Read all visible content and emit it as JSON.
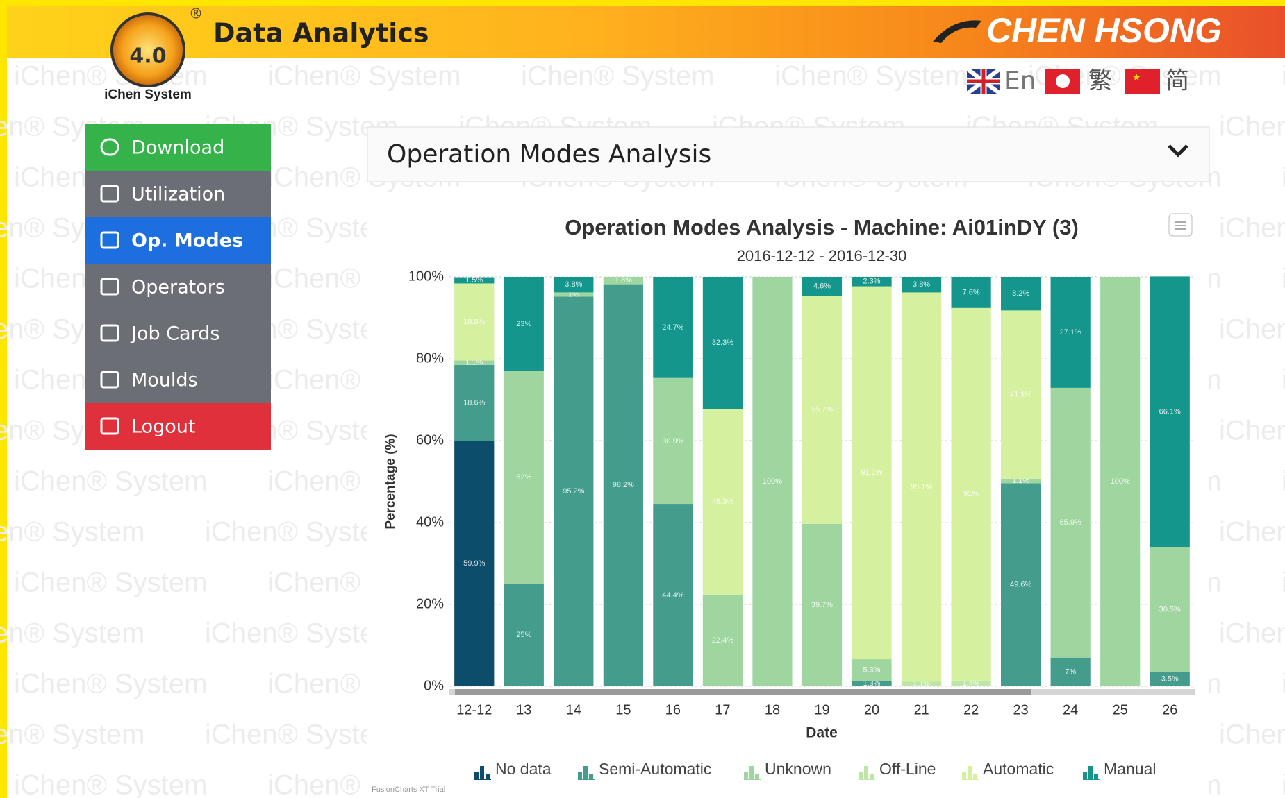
{
  "watermark": "iChen® System",
  "header": {
    "logo_version": "4.0",
    "logo_caption": "iChen System",
    "title": "Data Analytics",
    "company": "CHEN HSONG",
    "languages": [
      "En",
      "繁",
      "简"
    ]
  },
  "nav": [
    "Download",
    "Utilization",
    "Op. Modes",
    "Operators",
    "Job Cards",
    "Moulds",
    "Logout"
  ],
  "dropdown": "Operation Modes Analysis",
  "footer": "FusionCharts XT Trial",
  "chart_data": {
    "type": "stacked_bar",
    "title": "Operation Modes Analysis - Machine: Ai01inDY (3)",
    "subtitle": "2016-12-12 - 2016-12-30",
    "x_label": "Date",
    "y_label": "Percentage (%)",
    "categories": [
      "12-12",
      "13",
      "14",
      "15",
      "16",
      "17",
      "18",
      "19",
      "20",
      "21",
      "22",
      "23",
      "24",
      "25",
      "26"
    ],
    "ylim": [
      0,
      100
    ],
    "yticks": [
      {
        "value": 0,
        "label": "0%"
      },
      {
        "value": 20,
        "label": "20%"
      },
      {
        "value": 40,
        "label": "40%"
      },
      {
        "value": 60,
        "label": "60%"
      },
      {
        "value": 80,
        "label": "80%"
      },
      {
        "value": 100,
        "label": "100%"
      }
    ],
    "grid": true,
    "legend": "bottom",
    "series": [
      {
        "name": "No data",
        "color": "#0b4d6b",
        "values": [
          59.9,
          null,
          null,
          null,
          null,
          null,
          null,
          null,
          null,
          null,
          null,
          null,
          null,
          null,
          null
        ],
        "value_labels": [
          "59.9%",
          null,
          null,
          null,
          null,
          null,
          null,
          null,
          null,
          null,
          null,
          null,
          null,
          null,
          null
        ]
      },
      {
        "name": "Semi-Automatic",
        "color": "#449c8c",
        "values": [
          18.6,
          25,
          95.2,
          98.2,
          44.4,
          null,
          null,
          null,
          1.3,
          null,
          null,
          49.6,
          7,
          null,
          3.5
        ],
        "value_labels": [
          "18.6%",
          "25%",
          "95.2%",
          "98.2%",
          "44.4%",
          null,
          null,
          null,
          "1.3%",
          null,
          null,
          "49.6%",
          "7%",
          null,
          "3.5%"
        ]
      },
      {
        "name": "Unknown",
        "color": "#9fd6a0",
        "values": [
          1.1,
          52,
          1,
          1.8,
          30.9,
          22.4,
          100,
          39.7,
          5.3,
          null,
          null,
          1.1,
          65.9,
          100,
          30.5
        ],
        "value_labels": [
          "1.1%",
          "52%",
          "1%",
          "1.8%",
          "30.9%",
          "22.4%",
          "100%",
          "39.7%",
          "5.3%",
          null,
          null,
          "1.1%",
          "65.9%",
          "100%",
          "30.5%"
        ]
      },
      {
        "name": "Off-Line",
        "color": "#bde6a6",
        "values": [
          null,
          null,
          null,
          null,
          null,
          null,
          null,
          null,
          null,
          1.1,
          1.4,
          null,
          null,
          null,
          null
        ],
        "value_labels": [
          null,
          null,
          null,
          null,
          null,
          null,
          null,
          null,
          null,
          "1.1%",
          "1.4%",
          null,
          null,
          null,
          null
        ]
      },
      {
        "name": "Automatic",
        "color": "#d5f09f",
        "values": [
          18.8,
          null,
          null,
          null,
          null,
          45.3,
          null,
          55.7,
          91.1,
          95.1,
          91,
          41.1,
          null,
          null,
          null
        ],
        "value_labels": [
          "18.8%",
          null,
          null,
          null,
          null,
          "45.3%",
          null,
          "55.7%",
          "91.1%",
          "95.1%",
          "91%",
          "41.1%",
          null,
          null,
          null
        ]
      },
      {
        "name": "Manual",
        "color": "#14968c",
        "values": [
          1.5,
          23,
          3.8,
          null,
          24.7,
          32.3,
          null,
          4.6,
          2.3,
          3.8,
          7.6,
          8.2,
          27.1,
          null,
          66.1
        ],
        "value_labels": [
          "1.5%",
          "23%",
          "3.8%",
          null,
          "24.7%",
          "32.3%",
          null,
          "4.6%",
          "2.3%",
          "3.8%",
          "7.6%",
          "8.2%",
          "27.1%",
          null,
          "66.1%"
        ]
      }
    ]
  }
}
